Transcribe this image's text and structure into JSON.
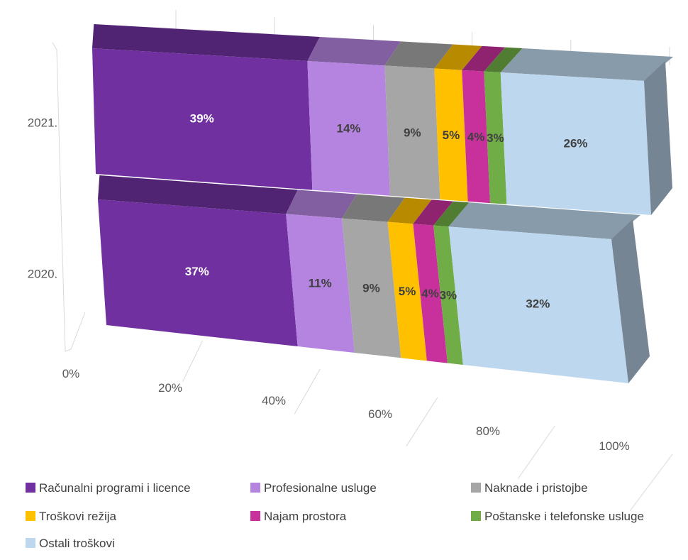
{
  "chart_data": {
    "type": "bar",
    "orientation": "horizontal",
    "stacked": "percent",
    "style": "3d",
    "categories": [
      "2020.",
      "2021."
    ],
    "series": [
      {
        "name": "Računalni programi i licence",
        "color": "#7030A0",
        "values": [
          37,
          39
        ],
        "labels": [
          "37%",
          "39%"
        ]
      },
      {
        "name": "Profesionalne usluge",
        "color": "#B584E0",
        "values": [
          11,
          14
        ],
        "labels": [
          "11%",
          "14%"
        ]
      },
      {
        "name": "Naknade i pristojbe",
        "color": "#A6A6A6",
        "values": [
          9,
          9
        ],
        "labels": [
          "9%",
          "9%"
        ]
      },
      {
        "name": "Troškovi režija",
        "color": "#FFC000",
        "values": [
          5,
          5
        ],
        "labels": [
          "5%",
          "5%"
        ]
      },
      {
        "name": "Najam prostora",
        "color": "#C8309C",
        "values": [
          4,
          4
        ],
        "labels": [
          "4%",
          "4%"
        ]
      },
      {
        "name": "Poštanske i telefonske usluge",
        "color": "#70AD47",
        "values": [
          3,
          3
        ],
        "labels": [
          "3%",
          "3%"
        ]
      },
      {
        "name": "Ostali troškovi",
        "color": "#BDD7EE",
        "values": [
          32,
          26
        ],
        "labels": [
          "32%",
          "26%"
        ]
      }
    ],
    "x_ticks": [
      "0%",
      "20%",
      "40%",
      "60%",
      "80%",
      "100%"
    ],
    "xlim": [
      0,
      100
    ],
    "grid": true,
    "legend_position": "bottom",
    "title": "",
    "xlabel": "",
    "ylabel": ""
  }
}
